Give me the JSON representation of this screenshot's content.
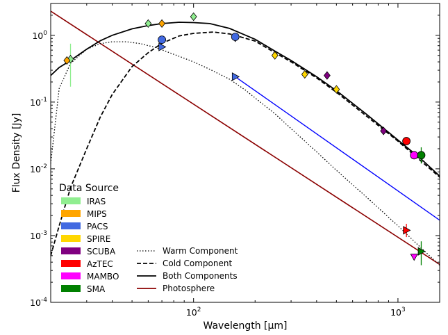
{
  "chart_data": {
    "type": "scatter",
    "xlabel": "Wavelength [μm]",
    "ylabel": "Flux Density [Jy]",
    "xscale": "log",
    "yscale": "log",
    "xlim": [
      20,
      1600
    ],
    "ylim": [
      0.0001,
      3
    ],
    "x_ticks": [
      {
        "value": 100,
        "base": "10",
        "exp": "2"
      },
      {
        "value": 1000,
        "base": "10",
        "exp": "3"
      }
    ],
    "y_ticks": [
      {
        "value": 0.0001,
        "base": "10",
        "exp": "-4"
      },
      {
        "value": 0.001,
        "base": "10",
        "exp": "-3"
      },
      {
        "value": 0.01,
        "base": "10",
        "exp": "-2"
      },
      {
        "value": 0.1,
        "base": "10",
        "exp": "-1"
      },
      {
        "value": 1,
        "base": "10",
        "exp": "0"
      }
    ],
    "legend_placement": "lower-left",
    "legend_title": "Data Source",
    "data_sources": [
      {
        "name": "IRAS",
        "color": "#90ee90"
      },
      {
        "name": "MIPS",
        "color": "#ffa500"
      },
      {
        "name": "PACS",
        "color": "#4169e1"
      },
      {
        "name": "SPIRE",
        "color": "#ffd700"
      },
      {
        "name": "SCUBA",
        "color": "#800080"
      },
      {
        "name": "AzTEC",
        "color": "#ff0000"
      },
      {
        "name": "MAMBO",
        "color": "#ff00ff"
      },
      {
        "name": "SMA",
        "color": "#008000"
      }
    ],
    "line_legend": [
      {
        "name": "Warm Component",
        "style": "dotted",
        "color": "#000000"
      },
      {
        "name": "Cold Component",
        "style": "dashed",
        "color": "#000000"
      },
      {
        "name": "Both Components",
        "style": "solid",
        "color": "#000000"
      },
      {
        "name": "Photosphere",
        "style": "solid",
        "color": "#8b0000"
      }
    ],
    "models": {
      "warm": [
        [
          20,
          0.012
        ],
        [
          22,
          0.16
        ],
        [
          25,
          0.38
        ],
        [
          30,
          0.62
        ],
        [
          35,
          0.75
        ],
        [
          40,
          0.8
        ],
        [
          47,
          0.8
        ],
        [
          55,
          0.75
        ],
        [
          65,
          0.66
        ],
        [
          80,
          0.52
        ],
        [
          100,
          0.4
        ],
        [
          120,
          0.31
        ],
        [
          150,
          0.22
        ],
        [
          180,
          0.15
        ],
        [
          200,
          0.115
        ],
        [
          250,
          0.067
        ],
        [
          300,
          0.04
        ],
        [
          400,
          0.018
        ],
        [
          500,
          0.0095
        ],
        [
          700,
          0.0038
        ],
        [
          1000,
          0.0014
        ],
        [
          1300,
          0.00065
        ],
        [
          1600,
          0.00036
        ]
      ],
      "cold": [
        [
          20,
          0.0005
        ],
        [
          22,
          0.0014
        ],
        [
          25,
          0.0052
        ],
        [
          30,
          0.02
        ],
        [
          35,
          0.06
        ],
        [
          40,
          0.13
        ],
        [
          50,
          0.34
        ],
        [
          60,
          0.55
        ],
        [
          70,
          0.76
        ],
        [
          85,
          0.98
        ],
        [
          100,
          1.07
        ],
        [
          125,
          1.12
        ],
        [
          150,
          1.05
        ],
        [
          180,
          0.9
        ],
        [
          200,
          0.82
        ],
        [
          250,
          0.55
        ],
        [
          300,
          0.4
        ],
        [
          400,
          0.23
        ],
        [
          500,
          0.14
        ],
        [
          700,
          0.062
        ],
        [
          1000,
          0.026
        ],
        [
          1300,
          0.013
        ],
        [
          1600,
          0.0075
        ]
      ],
      "both": [
        [
          20,
          0.25
        ],
        [
          22,
          0.33
        ],
        [
          25,
          0.42
        ],
        [
          30,
          0.62
        ],
        [
          35,
          0.83
        ],
        [
          40,
          1.0
        ],
        [
          50,
          1.25
        ],
        [
          60,
          1.4
        ],
        [
          70,
          1.5
        ],
        [
          85,
          1.57
        ],
        [
          100,
          1.55
        ],
        [
          120,
          1.5
        ],
        [
          150,
          1.27
        ],
        [
          180,
          1.0
        ],
        [
          200,
          0.87
        ],
        [
          250,
          0.58
        ],
        [
          300,
          0.42
        ],
        [
          400,
          0.24
        ],
        [
          500,
          0.148
        ],
        [
          700,
          0.066
        ],
        [
          1000,
          0.027
        ],
        [
          1300,
          0.014
        ],
        [
          1600,
          0.0078
        ]
      ],
      "photosphere": [
        [
          20,
          2.3
        ],
        [
          1600,
          0.00037
        ]
      ],
      "pacs_extrapolation": [
        [
          160,
          0.24
        ],
        [
          1600,
          0.0017
        ]
      ]
    },
    "points": [
      {
        "source": "IRAS",
        "marker": "diamond",
        "x": 25,
        "y": 0.44,
        "yerr": [
          0.17,
          0.75
        ]
      },
      {
        "source": "IRAS",
        "marker": "diamond",
        "x": 60,
        "y": 1.5
      },
      {
        "source": "IRAS",
        "marker": "diamond",
        "x": 100,
        "y": 1.9
      },
      {
        "source": "MIPS",
        "marker": "diamond",
        "x": 24,
        "y": 0.42
      },
      {
        "source": "MIPS",
        "marker": "diamond",
        "x": 70,
        "y": 1.5
      },
      {
        "source": "MIPS",
        "marker": "diamond",
        "x": 160,
        "y": 0.92
      },
      {
        "source": "PACS",
        "marker": "circle",
        "x": 70,
        "y": 0.86
      },
      {
        "source": "PACS",
        "marker": "circle",
        "x": 160,
        "y": 0.95
      },
      {
        "source": "PACS",
        "marker": "triangle-right",
        "x": 70,
        "y": 0.67
      },
      {
        "source": "PACS",
        "marker": "triangle-right",
        "x": 160,
        "y": 0.24
      },
      {
        "source": "SPIRE",
        "marker": "diamond",
        "x": 250,
        "y": 0.5
      },
      {
        "source": "SPIRE",
        "marker": "diamond",
        "x": 350,
        "y": 0.26
      },
      {
        "source": "SPIRE",
        "marker": "diamond",
        "x": 500,
        "y": 0.155
      },
      {
        "source": "SCUBA",
        "marker": "diamond",
        "x": 450,
        "y": 0.25
      },
      {
        "source": "SCUBA",
        "marker": "diamond",
        "x": 850,
        "y": 0.037
      },
      {
        "source": "AzTEC",
        "marker": "circle",
        "x": 1100,
        "y": 0.026
      },
      {
        "source": "AzTEC",
        "marker": "triangle-right",
        "x": 1100,
        "y": 0.0012,
        "yerr": [
          0.00095,
          0.0015
        ]
      },
      {
        "source": "MAMBO",
        "marker": "circle",
        "x": 1200,
        "y": 0.016
      },
      {
        "source": "MAMBO",
        "marker": "triangle-down",
        "x": 1200,
        "y": 0.00048
      },
      {
        "source": "SMA",
        "marker": "circle",
        "x": 1300,
        "y": 0.016,
        "yerr": [
          0.012,
          0.021
        ]
      },
      {
        "source": "SMA",
        "marker": "triangle-right",
        "x": 1300,
        "y": 0.00058,
        "yerr": [
          0.00036,
          0.00082
        ]
      }
    ]
  }
}
